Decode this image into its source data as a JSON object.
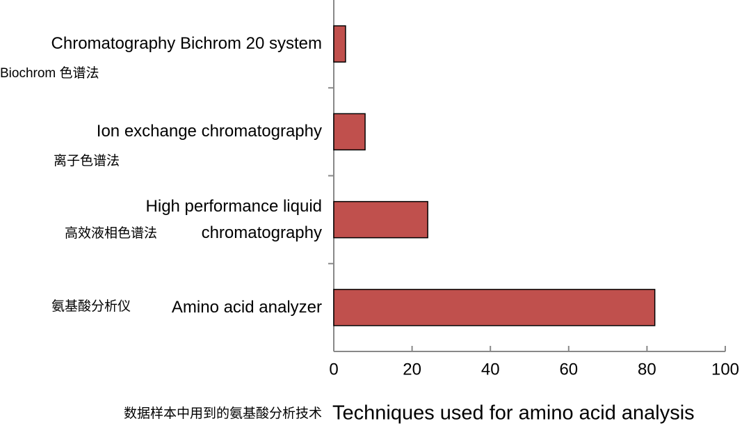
{
  "chart_data": {
    "type": "bar",
    "orientation": "horizontal",
    "categories": [
      "Chromatography Bichrom 20 system",
      "Ion exchange chromatography",
      "High performance liquid chromatography",
      "Amino acid analyzer"
    ],
    "category_labels_zh": [
      "Biochrom 色谱法",
      "离子色谱法",
      "高效液相色谱法",
      "氨基酸分析仪"
    ],
    "values": [
      3,
      8,
      24,
      82
    ],
    "color": "#c0504d",
    "xlim": [
      0,
      100
    ],
    "xticks": [
      0,
      20,
      40,
      60,
      80,
      100
    ],
    "xlabel": "Techniques used for amino acid analysis",
    "xlabel_zh": "数据样本中用到的氨基酸分析技术"
  }
}
